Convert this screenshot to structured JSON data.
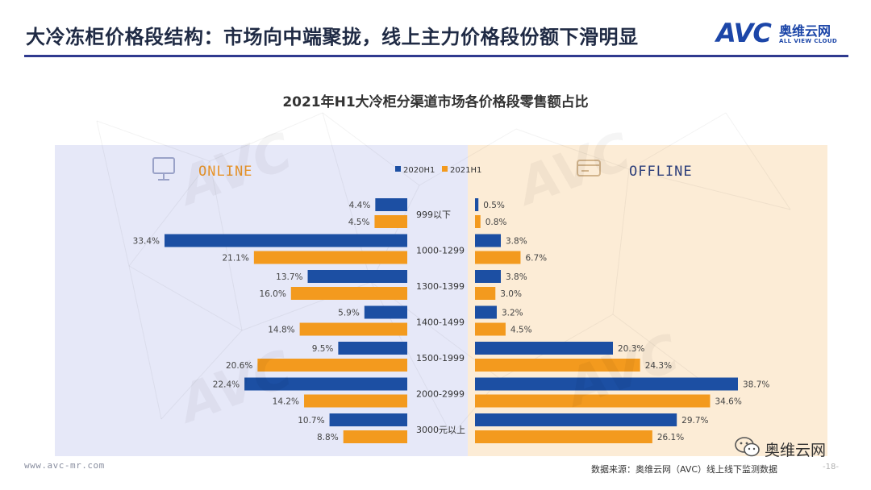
{
  "header": {
    "title": "大冷冻柜价格段结构：市场向中端聚拢，线上主力价格段份额下滑明显"
  },
  "logo": {
    "mark": "AVC",
    "cn": "奥维云网",
    "en": "ALL VIEW CLOUD"
  },
  "colors": {
    "series_2020": "#1c4fa3",
    "series_2021": "#f39a1e",
    "online_panel": "#e6e8f8",
    "offline_panel": "#fcecd6",
    "online_label": "#e8942a",
    "offline_label": "#2c3e7a",
    "header_line": "#2f3a8f"
  },
  "icons": {
    "online": "monitor-icon",
    "offline": "card-icon",
    "wechat": "wechat-icon"
  },
  "chart_data": {
    "type": "bar",
    "orientation": "horizontal-butterfly",
    "title": "2021年H1大冷柜分渠道市场各价格段零售额占比",
    "categories": [
      "999以下",
      "1000-1299",
      "1300-1399",
      "1400-1499",
      "1500-1999",
      "2000-2999",
      "3000元以上"
    ],
    "legend": [
      "2020H1",
      "2021H1"
    ],
    "legend_position": "top-center",
    "unit": "%",
    "grid": false,
    "panels": [
      {
        "name": "ONLINE",
        "side": "left",
        "series": [
          {
            "name": "2020H1",
            "values": [
              4.4,
              33.4,
              13.7,
              5.9,
              9.5,
              22.4,
              10.7
            ]
          },
          {
            "name": "2021H1",
            "values": [
              4.5,
              21.1,
              16.0,
              14.8,
              20.6,
              14.2,
              8.8
            ]
          }
        ]
      },
      {
        "name": "OFFLINE",
        "side": "right",
        "series": [
          {
            "name": "2020H1",
            "values": [
              0.5,
              3.8,
              3.8,
              3.2,
              20.3,
              38.7,
              29.7
            ]
          },
          {
            "name": "2021H1",
            "values": [
              0.8,
              6.7,
              3.0,
              4.5,
              24.3,
              34.6,
              26.1
            ]
          }
        ]
      }
    ]
  },
  "footer": {
    "website": "www.avc-mr.com",
    "source": "数据来源：奥维云网（AVC）线上线下监测数据",
    "page": "-18-",
    "wechat_label": "奥维云网"
  }
}
